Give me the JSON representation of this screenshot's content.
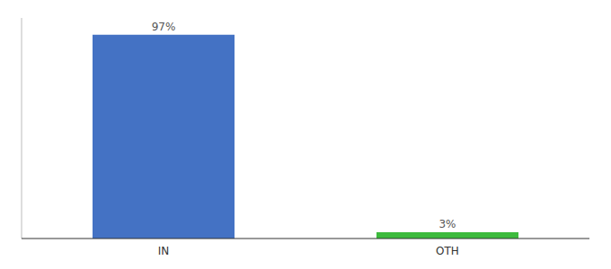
{
  "chart_data": {
    "type": "bar",
    "categories": [
      "IN",
      "OTH"
    ],
    "values": [
      97,
      3
    ],
    "value_labels": [
      "97%",
      "3%"
    ],
    "colors": [
      "#4472c4",
      "#3dbb3d"
    ],
    "ylim": [
      0,
      105
    ],
    "data_labels": true,
    "tick_labels": "x",
    "grid": false
  }
}
